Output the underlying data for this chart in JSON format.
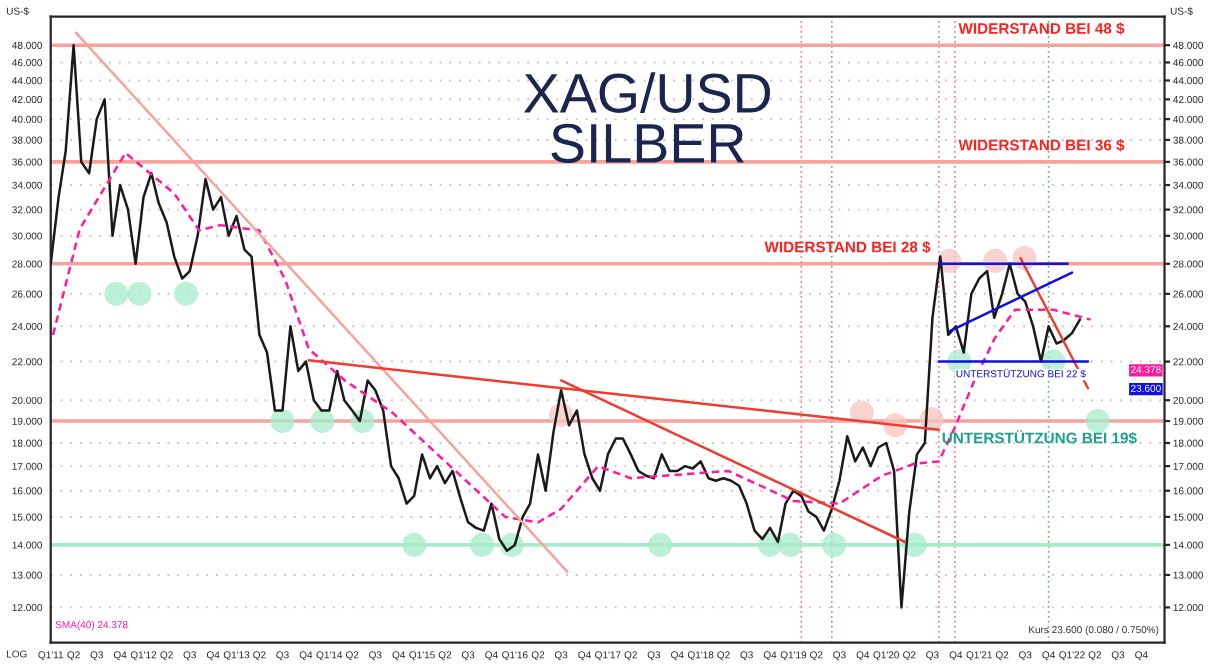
{
  "chart_data": {
    "type": "line",
    "title": "XAG/USD",
    "subtitle": "SILBER",
    "ylabel": "US-$",
    "y2label": "US-$",
    "log": "y",
    "grid": "y",
    "legend": false,
    "xlim": [
      "2011-01-01",
      "2022-12-31"
    ],
    "ylim": [
      11,
      51.5
    ],
    "yticks": [
      {
        "value": 12,
        "label": "12.000"
      },
      {
        "value": 13,
        "label": "13.000"
      },
      {
        "value": 14,
        "label": "14.000"
      },
      {
        "value": 15,
        "label": "15.000"
      },
      {
        "value": 16,
        "label": "16.000"
      },
      {
        "value": 17,
        "label": "17.000"
      },
      {
        "value": 18,
        "label": "18.000"
      },
      {
        "value": 19,
        "label": "19.000"
      },
      {
        "value": 20,
        "label": "20.000"
      },
      {
        "value": 22,
        "label": "22.000"
      },
      {
        "value": 24,
        "label": "24.000"
      },
      {
        "value": 26,
        "label": "26.000"
      },
      {
        "value": 28,
        "label": "28.000"
      },
      {
        "value": 30,
        "label": "30.000"
      },
      {
        "value": 32,
        "label": "32.000"
      },
      {
        "value": 34,
        "label": "34.000"
      },
      {
        "value": 36,
        "label": "36.000"
      },
      {
        "value": 38,
        "label": "38.000"
      },
      {
        "value": 40,
        "label": "40.000"
      },
      {
        "value": 42,
        "label": "42.000"
      },
      {
        "value": 44,
        "label": "44.000"
      },
      {
        "value": 46,
        "label": "46.000"
      },
      {
        "value": 48,
        "label": "48.000"
      }
    ],
    "xticks": [
      {
        "value": "2011-01-01",
        "label": "Q1'11"
      },
      {
        "value": "2011-04-01",
        "label": "Q2"
      },
      {
        "value": "2011-07-01",
        "label": "Q3"
      },
      {
        "value": "2011-10-01",
        "label": "Q4"
      },
      {
        "value": "2012-01-01",
        "label": "Q1'12"
      },
      {
        "value": "2012-04-01",
        "label": "Q2"
      },
      {
        "value": "2012-07-01",
        "label": "Q3"
      },
      {
        "value": "2012-10-01",
        "label": "Q4"
      },
      {
        "value": "2013-01-01",
        "label": "Q1'13"
      },
      {
        "value": "2013-04-01",
        "label": "Q2"
      },
      {
        "value": "2013-07-01",
        "label": "Q3"
      },
      {
        "value": "2013-10-01",
        "label": "Q4"
      },
      {
        "value": "2014-01-01",
        "label": "Q1'14"
      },
      {
        "value": "2014-04-01",
        "label": "Q2"
      },
      {
        "value": "2014-07-01",
        "label": "Q3"
      },
      {
        "value": "2014-10-01",
        "label": "Q4"
      },
      {
        "value": "2015-01-01",
        "label": "Q1'15"
      },
      {
        "value": "2015-04-01",
        "label": "Q2"
      },
      {
        "value": "2015-07-01",
        "label": "Q3"
      },
      {
        "value": "2015-10-01",
        "label": "Q4"
      },
      {
        "value": "2016-01-01",
        "label": "Q1'16"
      },
      {
        "value": "2016-04-01",
        "label": "Q2"
      },
      {
        "value": "2016-07-01",
        "label": "Q3"
      },
      {
        "value": "2016-10-01",
        "label": "Q4"
      },
      {
        "value": "2017-01-01",
        "label": "Q1'17"
      },
      {
        "value": "2017-04-01",
        "label": "Q2"
      },
      {
        "value": "2017-07-01",
        "label": "Q3"
      },
      {
        "value": "2017-10-01",
        "label": "Q4"
      },
      {
        "value": "2018-01-01",
        "label": "Q1'18"
      },
      {
        "value": "2018-04-01",
        "label": "Q2"
      },
      {
        "value": "2018-07-01",
        "label": "Q3"
      },
      {
        "value": "2018-10-01",
        "label": "Q4"
      },
      {
        "value": "2019-01-01",
        "label": "Q1'19"
      },
      {
        "value": "2019-04-01",
        "label": "Q2"
      },
      {
        "value": "2019-07-01",
        "label": "Q3"
      },
      {
        "value": "2019-10-01",
        "label": "Q4"
      },
      {
        "value": "2020-01-01",
        "label": "Q1'20"
      },
      {
        "value": "2020-04-01",
        "label": "Q2"
      },
      {
        "value": "2020-07-01",
        "label": "Q3"
      },
      {
        "value": "2020-10-01",
        "label": "Q4"
      },
      {
        "value": "2021-01-01",
        "label": "Q1'21"
      },
      {
        "value": "2021-04-01",
        "label": "Q2"
      },
      {
        "value": "2021-07-01",
        "label": "Q3"
      },
      {
        "value": "2021-10-01",
        "label": "Q4"
      },
      {
        "value": "2022-01-01",
        "label": "Q1'22"
      },
      {
        "value": "2022-04-01",
        "label": "Q2"
      },
      {
        "value": "2022-07-01",
        "label": "Q3"
      },
      {
        "value": "2022-10-01",
        "label": "Q4"
      }
    ],
    "x": [
      "2011-01",
      "2011-02",
      "2011-03",
      "2011-04",
      "2011-05",
      "2011-06",
      "2011-07",
      "2011-08",
      "2011-09",
      "2011-10",
      "2011-11",
      "2011-12",
      "2012-01",
      "2012-02",
      "2012-03",
      "2012-04",
      "2012-05",
      "2012-06",
      "2012-07",
      "2012-08",
      "2012-09",
      "2012-10",
      "2012-11",
      "2012-12",
      "2013-01",
      "2013-02",
      "2013-03",
      "2013-04",
      "2013-05",
      "2013-06",
      "2013-07",
      "2013-08",
      "2013-09",
      "2013-10",
      "2013-11",
      "2013-12",
      "2014-01",
      "2014-02",
      "2014-03",
      "2014-04",
      "2014-05",
      "2014-06",
      "2014-07",
      "2014-08",
      "2014-09",
      "2014-10",
      "2014-11",
      "2014-12",
      "2015-01",
      "2015-02",
      "2015-03",
      "2015-04",
      "2015-05",
      "2015-06",
      "2015-07",
      "2015-08",
      "2015-09",
      "2015-10",
      "2015-11",
      "2015-12",
      "2016-01",
      "2016-02",
      "2016-03",
      "2016-04",
      "2016-05",
      "2016-06",
      "2016-07",
      "2016-08",
      "2016-09",
      "2016-10",
      "2016-11",
      "2016-12",
      "2017-01",
      "2017-02",
      "2017-03",
      "2017-04",
      "2017-05",
      "2017-06",
      "2017-07",
      "2017-08",
      "2017-09",
      "2017-10",
      "2017-11",
      "2017-12",
      "2018-01",
      "2018-02",
      "2018-03",
      "2018-04",
      "2018-05",
      "2018-06",
      "2018-07",
      "2018-08",
      "2018-09",
      "2018-10",
      "2018-11",
      "2018-12",
      "2019-01",
      "2019-02",
      "2019-03",
      "2019-04",
      "2019-05",
      "2019-06",
      "2019-07",
      "2019-08",
      "2019-09",
      "2019-10",
      "2019-11",
      "2019-12",
      "2020-01",
      "2020-02",
      "2020-03",
      "2020-04",
      "2020-05",
      "2020-06",
      "2020-07",
      "2020-08",
      "2020-09",
      "2020-10",
      "2020-11",
      "2020-12",
      "2021-01",
      "2021-02",
      "2021-03",
      "2021-04",
      "2021-05",
      "2021-06",
      "2021-07",
      "2021-08",
      "2021-09",
      "2021-10",
      "2021-11",
      "2021-12",
      "2022-01",
      "2022-02"
    ],
    "series": [
      {
        "type": "line",
        "color": "#1a1a1a",
        "values": [
          28,
          33,
          37,
          48,
          36,
          35,
          40,
          42,
          30,
          34,
          32,
          28,
          33,
          35,
          32.5,
          31,
          28.5,
          27,
          27.5,
          30,
          34.5,
          32,
          33,
          30,
          31.5,
          29,
          28.5,
          23.5,
          22.5,
          19.5,
          19.5,
          24,
          21.5,
          22,
          20,
          19.5,
          19.5,
          21.5,
          20,
          19.5,
          19,
          21,
          20.5,
          19.5,
          17,
          16.5,
          15.5,
          15.8,
          17.5,
          16.5,
          17,
          16.3,
          16.8,
          15.7,
          14.8,
          14.6,
          14.5,
          15.5,
          14.2,
          13.8,
          14,
          15,
          15.5,
          17.5,
          16,
          18.5,
          20.5,
          18.8,
          19.5,
          17.5,
          16.5,
          16,
          17.5,
          18.2,
          18.2,
          17.5,
          16.8,
          16.6,
          16.5,
          17.5,
          16.8,
          16.8,
          17,
          16.9,
          17.2,
          16.5,
          16.4,
          16.5,
          16.4,
          16.2,
          15.5,
          14.5,
          14.2,
          14.6,
          14.1,
          15.5,
          16,
          15.8,
          15.2,
          15,
          14.5,
          15.3,
          16.4,
          18.3,
          17.2,
          17.8,
          17,
          17.8,
          18,
          16.8,
          12,
          15.2,
          17.5,
          18,
          24.5,
          28.5,
          23.5,
          24,
          22.5,
          26,
          27,
          27.5,
          24.5,
          26,
          28,
          26,
          25.5,
          24,
          22,
          24,
          23,
          23.2,
          23.6,
          24.4
        ]
      },
      {
        "type": "line",
        "color": "#ff1aa0",
        "line_style": "dashed",
        "x": [
          "2011-01-10",
          "2011-04-25",
          "2011-10-22",
          "2012-05-01",
          "2012-08-07",
          "2012-10-27",
          "2013-04-01",
          "2013-07-12",
          "2013-10-12",
          "2014-03-03",
          "2014-09-06",
          "2015-11-24",
          "2016-04-01",
          "2016-07-01",
          "2016-11-24",
          "2017-04-01",
          "2018-04-20",
          "2019-01-01",
          "2019-07-01",
          "2019-12-15",
          "2020-04-20",
          "2020-07-26",
          "2020-09-27",
          "2020-12-16",
          "2021-03-03",
          "2021-05-22",
          "2021-10-20",
          "2022-03-15"
        ],
        "values": [
          23.5,
          30.5,
          36.8,
          33.3,
          30.4,
          30.8,
          30.4,
          26.9,
          22.7,
          21.0,
          19.4,
          15.0,
          14.8,
          15.3,
          17.0,
          16.5,
          16.8,
          15.6,
          15.5,
          16.6,
          17.1,
          17.2,
          18.7,
          21.1,
          23.3,
          25.0,
          25.0,
          24.4
        ]
      },
      {
        "type": "line",
        "color": "#f7a39c",
        "x": [
          "2011-04-10",
          "2016-07-26"
        ],
        "values": [
          49.5,
          13.1
        ]
      },
      {
        "type": "line",
        "color": "#f03c30",
        "x": [
          "2013-10-12",
          "2020-07-26"
        ],
        "values": [
          22.07,
          18.6
        ]
      },
      {
        "type": "line",
        "color": "#f03c30",
        "x": [
          "2016-07-01",
          "2020-03-15"
        ],
        "values": [
          21.0,
          14.1
        ]
      },
      {
        "type": "line",
        "color": "#f03c30",
        "x": [
          "2021-06-12",
          "2022-03-05"
        ],
        "values": [
          28.4,
          20.6
        ]
      },
      {
        "type": "line",
        "color": "#1010e0",
        "x": [
          "2020-07-26",
          "2021-12-15"
        ],
        "values": [
          28,
          28
        ]
      },
      {
        "type": "line",
        "color": "#1010e0",
        "x": [
          "2020-09-05",
          "2022-01-01"
        ],
        "values": [
          23.7,
          27.4
        ]
      },
      {
        "type": "line",
        "color": "#1010e0",
        "x": [
          "2020-07-26",
          "2022-03-05"
        ],
        "values": [
          22,
          22
        ]
      },
      {
        "type": "scatter",
        "color": "#a6eccb",
        "marker": "circle",
        "x": [
          "2011-09-16",
          "2011-12-16",
          "2012-06-16",
          "2013-07-01",
          "2013-12-05",
          "2014-05-12",
          "2014-12-01",
          "2015-08-25",
          "2015-12-20",
          "2017-07-26",
          "2018-10-01",
          "2018-12-20",
          "2019-06-10",
          "2020-04-22",
          "2020-10-15",
          "2021-10-20",
          "2022-04-12"
        ],
        "values": [
          26,
          26,
          26,
          19,
          19,
          19,
          14,
          14,
          14,
          14,
          14,
          14,
          14,
          14,
          22,
          22,
          19
        ]
      },
      {
        "type": "scatter",
        "color": "#f6c6c0",
        "marker": "circle",
        "x": [
          "2016-07-01",
          "2019-09-27",
          "2020-02-06",
          "2020-06-28",
          "2020-09-05",
          "2021-03-05",
          "2021-06-28"
        ],
        "values": [
          19.3,
          19.4,
          18.8,
          19.1,
          28.2,
          28.2,
          28.4
        ]
      }
    ],
    "ref_lines": [
      {
        "axis": "y",
        "value": 48,
        "label": "WIDERSTAND BEI 48 $",
        "color": "#f7a39c"
      },
      {
        "axis": "y",
        "value": 36,
        "label": "WIDERSTAND BEI 36 $",
        "color": "#f7a39c"
      },
      {
        "axis": "y",
        "value": 28,
        "label": "WIDERSTAND BEI 28 $",
        "color": "#f7a39c"
      },
      {
        "axis": "y",
        "value": 19,
        "label": "UNTERSTÜTZUNG BEI 19$",
        "color": "#f7a39c"
      },
      {
        "axis": "y",
        "value": 14,
        "color": "#a6eccb"
      },
      {
        "axis": "x",
        "value": "2019-02-01",
        "color": "#f08080",
        "line_style": "dotted"
      },
      {
        "axis": "x",
        "value": "2019-06-01",
        "color": "#60c060",
        "line_style": "dotted"
      },
      {
        "axis": "x",
        "value": "2020-07-26",
        "color": "#f08080",
        "line_style": "dotted"
      },
      {
        "axis": "x",
        "value": "2020-09-27",
        "color": "#f08080",
        "line_style": "dotted"
      },
      {
        "axis": "x",
        "value": "2021-10-01",
        "color": "#60c060",
        "line_style": "dotted"
      }
    ],
    "annotations": [
      "LOG",
      "SMA(40) 24.378",
      "Kurs 23.600 (0.080 / 0.750%)",
      {
        "text": "UNTERSTÜTZUNG BEI 22 $",
        "x": "2020-10-01",
        "y": 22
      },
      "24.378",
      "23.600"
    ]
  }
}
